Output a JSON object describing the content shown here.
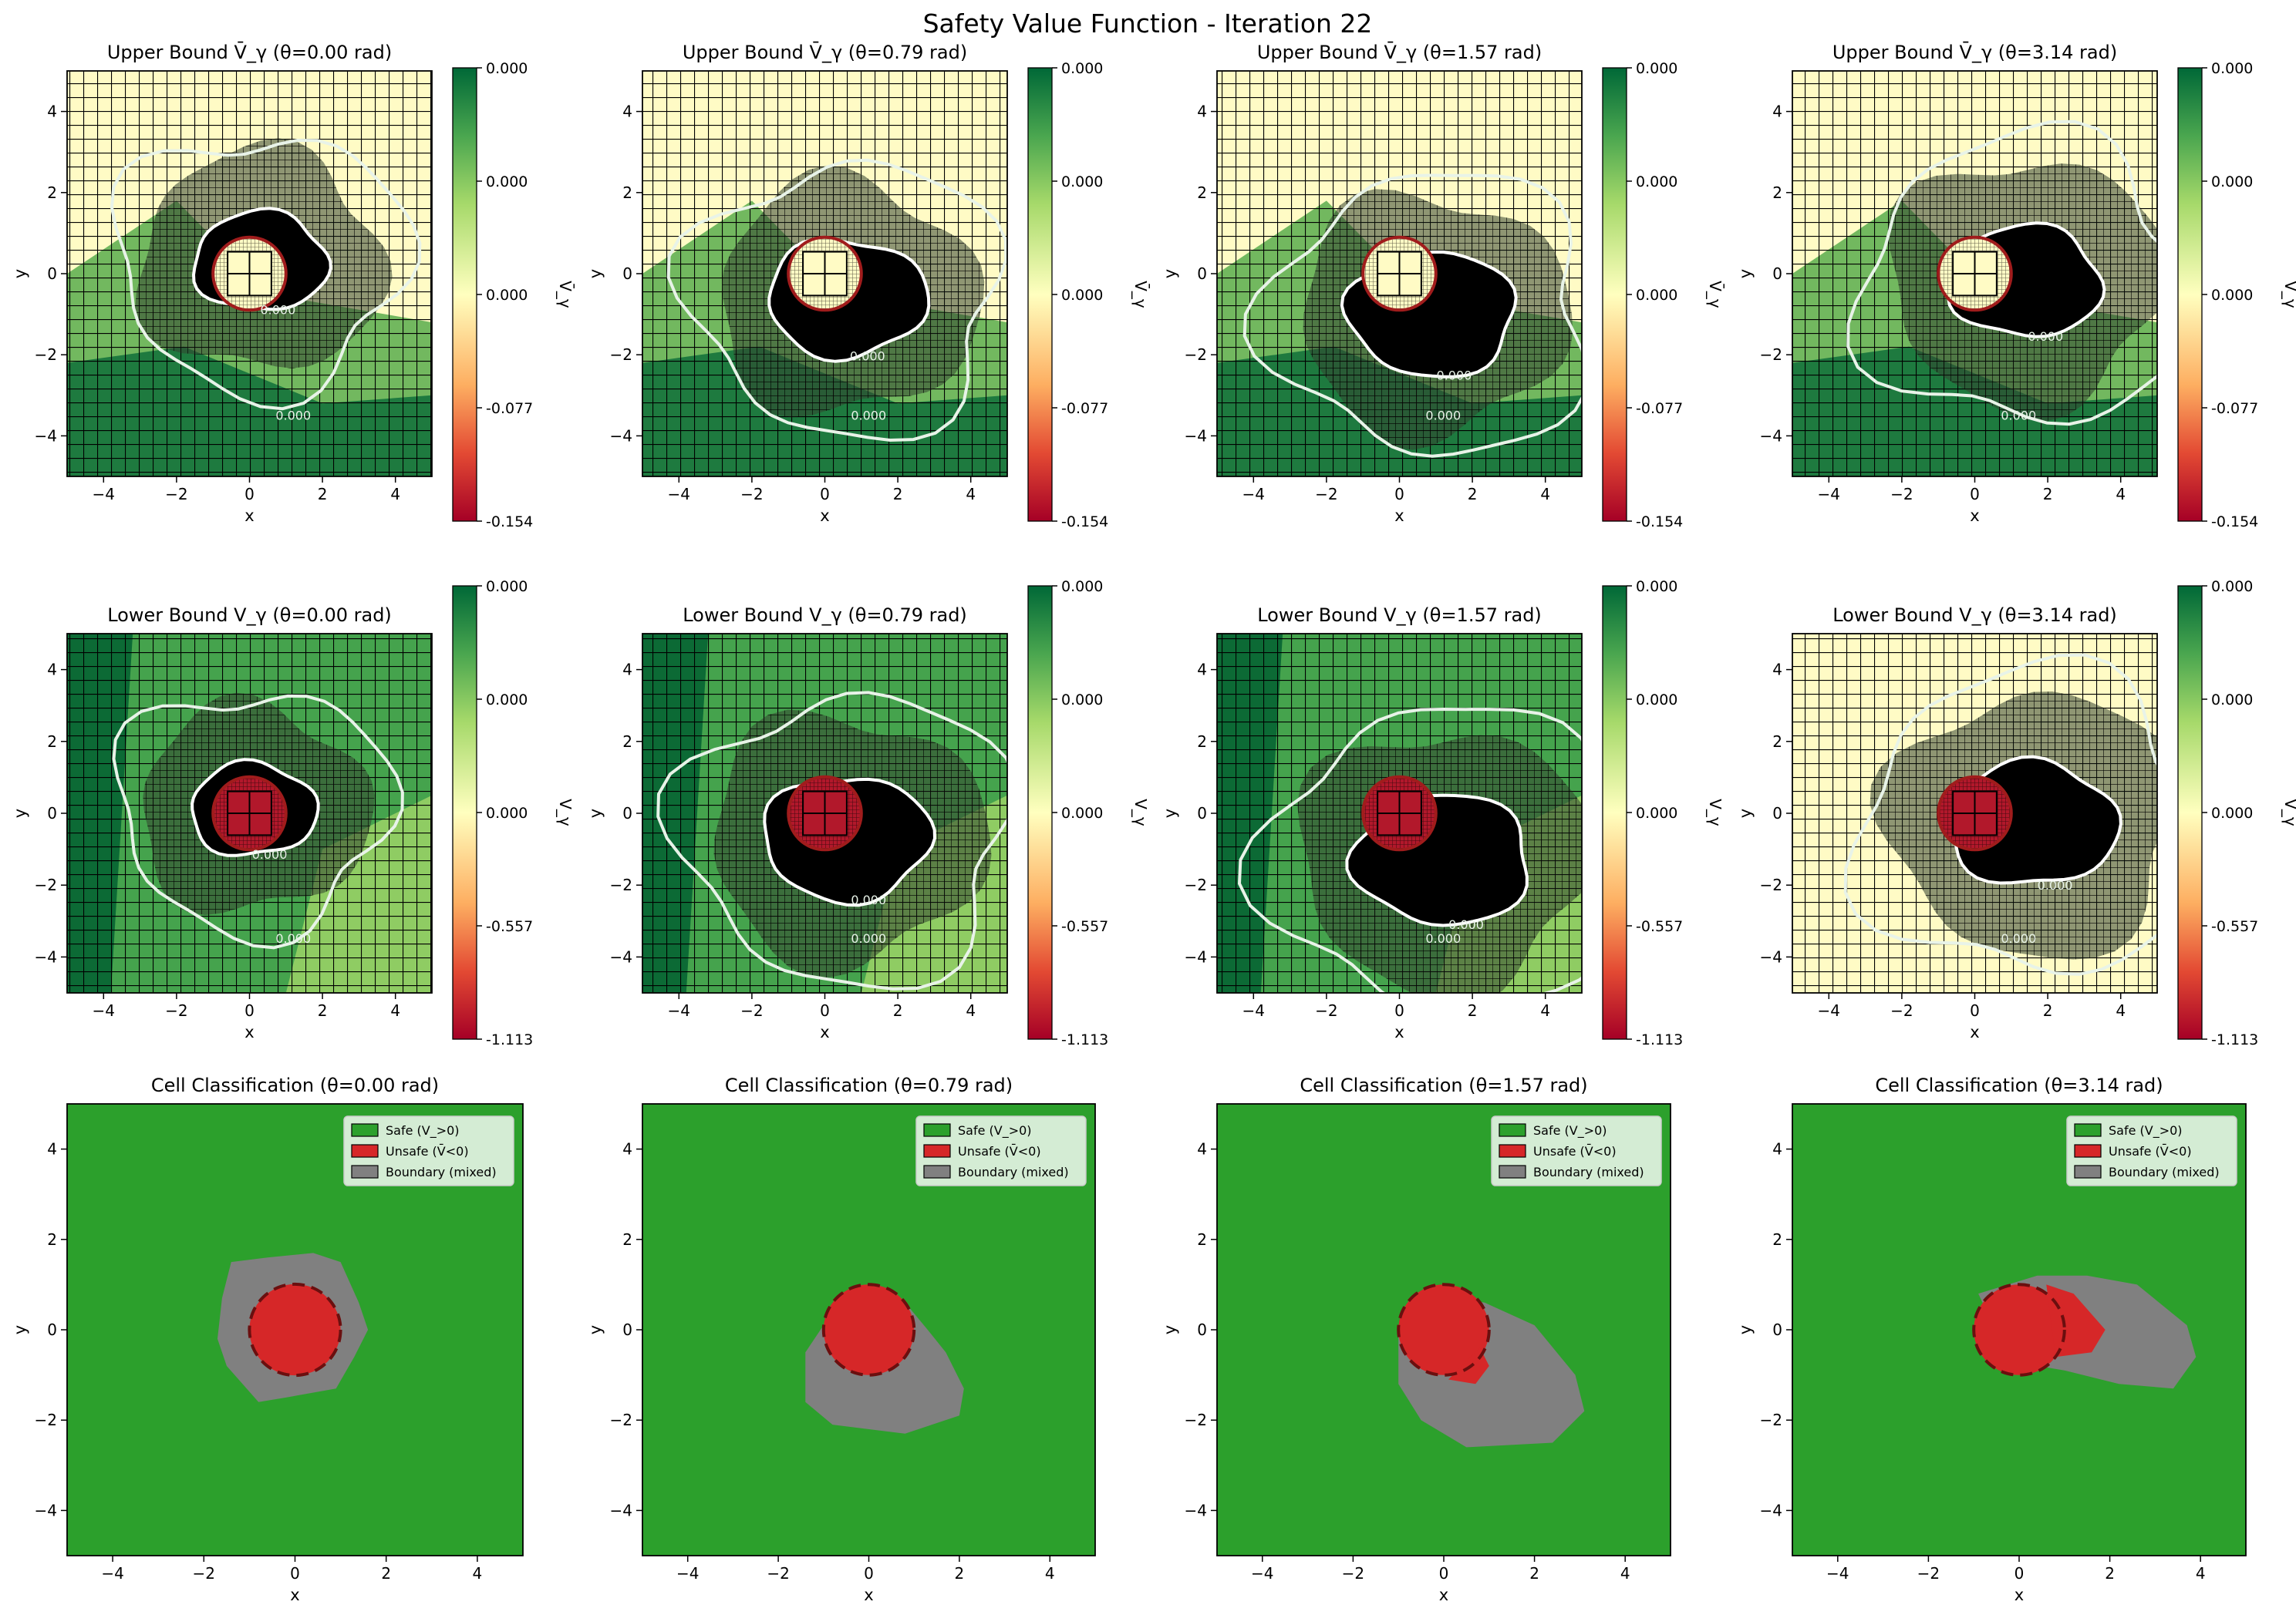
{
  "figure": {
    "title": "Safety Value Function - Iteration 22"
  },
  "theta_values": [
    "0.00",
    "0.79",
    "1.57",
    "3.14"
  ],
  "colors": {
    "safe": "#2ca02c",
    "unsafe": "#d62728",
    "boundary": "#808080",
    "dark_region": "#000000",
    "contour_line": "#e8f3e8",
    "grid_line": "#000000"
  },
  "chart_data": [
    {
      "type": "heatmap",
      "row": "upper",
      "title_prefix": "Upper Bound V̄_γ",
      "xlabel": "x",
      "ylabel": "y",
      "xlim": [
        -5,
        5
      ],
      "ylim": [
        -5,
        5
      ],
      "xticks": [
        "−4",
        "−2",
        "0",
        "2",
        "4"
      ],
      "yticks": [
        "4",
        "2",
        "0",
        "−2",
        "−4"
      ],
      "colormap": "RdYlGn",
      "colorbar": {
        "label": "V̄_γ",
        "ticks": [
          "0.000",
          "0.000",
          "0.000",
          "-0.077",
          "-0.154"
        ],
        "range": [
          -0.154,
          0.0
        ]
      },
      "contour_label": "0.000",
      "obstacle": {
        "center": [
          0,
          0
        ],
        "radius": 1.0
      },
      "panels": [
        {
          "theta": "0.00",
          "dark_center": [
            0.3,
            0.3
          ],
          "dark_radius": 1.6,
          "mixed_radius": 3.2
        },
        {
          "theta": "0.79",
          "dark_center": [
            0.6,
            -0.6
          ],
          "dark_radius": 1.9,
          "mixed_radius": 3.4
        },
        {
          "theta": "1.57",
          "dark_center": [
            0.9,
            -1.0
          ],
          "dark_radius": 2.0,
          "mixed_radius": 3.5
        },
        {
          "theta": "3.14",
          "dark_center": [
            1.4,
            -0.2
          ],
          "dark_radius": 1.8,
          "mixed_radius": 3.6
        }
      ]
    },
    {
      "type": "heatmap",
      "row": "lower",
      "title_prefix": "Lower Bound V_γ",
      "xlabel": "x",
      "ylabel": "y",
      "xlim": [
        -5,
        5
      ],
      "ylim": [
        -5,
        5
      ],
      "xticks": [
        "−4",
        "−2",
        "0",
        "2",
        "4"
      ],
      "yticks": [
        "4",
        "2",
        "0",
        "−2",
        "−4"
      ],
      "colormap": "RdYlGn",
      "colorbar": {
        "label": "V_γ",
        "ticks": [
          "0.000",
          "0.000",
          "0.000",
          "-0.557",
          "-1.113"
        ],
        "range": [
          -1.113,
          0.0
        ]
      },
      "contour_label": "0.000",
      "obstacle": {
        "center": [
          0,
          0
        ],
        "radius": 1.0
      },
      "panels": [
        {
          "theta": "0.00",
          "dark_center": [
            0.1,
            0.1
          ],
          "dark_radius": 1.5,
          "mixed_radius": 3.0
        },
        {
          "theta": "0.79",
          "dark_center": [
            0.6,
            -0.7
          ],
          "dark_radius": 2.0,
          "mixed_radius": 3.6
        },
        {
          "theta": "1.57",
          "dark_center": [
            1.2,
            -1.3
          ],
          "dark_radius": 2.1,
          "mixed_radius": 3.8
        },
        {
          "theta": "3.14",
          "dark_center": [
            1.6,
            -0.3
          ],
          "dark_radius": 2.0,
          "mixed_radius": 3.8
        }
      ]
    },
    {
      "type": "heatmap",
      "row": "classification",
      "title_prefix": "Cell Classification",
      "xlabel": "x",
      "ylabel": "y",
      "xlim": [
        -5,
        5
      ],
      "ylim": [
        -5,
        5
      ],
      "xticks": [
        "−4",
        "−2",
        "0",
        "2",
        "4"
      ],
      "yticks": [
        "4",
        "2",
        "0",
        "−2",
        "−4"
      ],
      "legend": [
        "Safe (V_>0)",
        "Unsafe (V̄<0)",
        "Boundary (mixed)"
      ],
      "legend_position": "upper right",
      "obstacle": {
        "center": [
          0,
          0
        ],
        "radius": 1.0
      },
      "panels": [
        {
          "theta": "0.00",
          "boundary_poly": [
            [
              -1.4,
              1.5
            ],
            [
              -0.6,
              1.6
            ],
            [
              0.4,
              1.7
            ],
            [
              1.0,
              1.5
            ],
            [
              1.4,
              0.6
            ],
            [
              1.6,
              0.0
            ],
            [
              1.3,
              -0.6
            ],
            [
              0.9,
              -1.3
            ],
            [
              -0.2,
              -1.5
            ],
            [
              -0.8,
              -1.6
            ],
            [
              -1.5,
              -0.8
            ],
            [
              -1.7,
              -0.2
            ],
            [
              -1.6,
              0.7
            ]
          ],
          "unsafe_extra": []
        },
        {
          "theta": "0.79",
          "boundary_poly": [
            [
              -1.0,
              0.1
            ],
            [
              -0.3,
              0.9
            ],
            [
              0.8,
              0.6
            ],
            [
              1.3,
              0.0
            ],
            [
              1.7,
              -0.5
            ],
            [
              2.1,
              -1.3
            ],
            [
              2.0,
              -1.9
            ],
            [
              0.8,
              -2.3
            ],
            [
              -0.8,
              -2.1
            ],
            [
              -1.4,
              -1.6
            ],
            [
              -1.4,
              -0.5
            ]
          ],
          "unsafe_extra": []
        },
        {
          "theta": "1.57",
          "boundary_poly": [
            [
              -1.0,
              0.1
            ],
            [
              -0.2,
              0.8
            ],
            [
              0.9,
              0.6
            ],
            [
              2.0,
              0.1
            ],
            [
              2.9,
              -1.0
            ],
            [
              3.1,
              -1.8
            ],
            [
              2.4,
              -2.5
            ],
            [
              0.5,
              -2.6
            ],
            [
              -0.5,
              -2.0
            ],
            [
              -1.0,
              -1.2
            ]
          ],
          "unsafe_extra": [
            [
              0.8,
              -0.4
            ],
            [
              1.0,
              -0.8
            ],
            [
              0.7,
              -1.2
            ],
            [
              0.1,
              -1.1
            ]
          ]
        },
        {
          "theta": "3.14",
          "boundary_poly": [
            [
              -0.9,
              0.8
            ],
            [
              0.4,
              1.2
            ],
            [
              1.5,
              1.2
            ],
            [
              2.6,
              1.0
            ],
            [
              3.7,
              0.1
            ],
            [
              3.9,
              -0.6
            ],
            [
              3.4,
              -1.3
            ],
            [
              2.2,
              -1.2
            ],
            [
              1.0,
              -0.9
            ],
            [
              -0.2,
              -0.7
            ]
          ],
          "unsafe_extra": [
            [
              0.6,
              1.0
            ],
            [
              1.2,
              0.8
            ],
            [
              1.9,
              0.0
            ],
            [
              1.6,
              -0.5
            ],
            [
              0.8,
              -0.6
            ]
          ]
        }
      ]
    }
  ]
}
